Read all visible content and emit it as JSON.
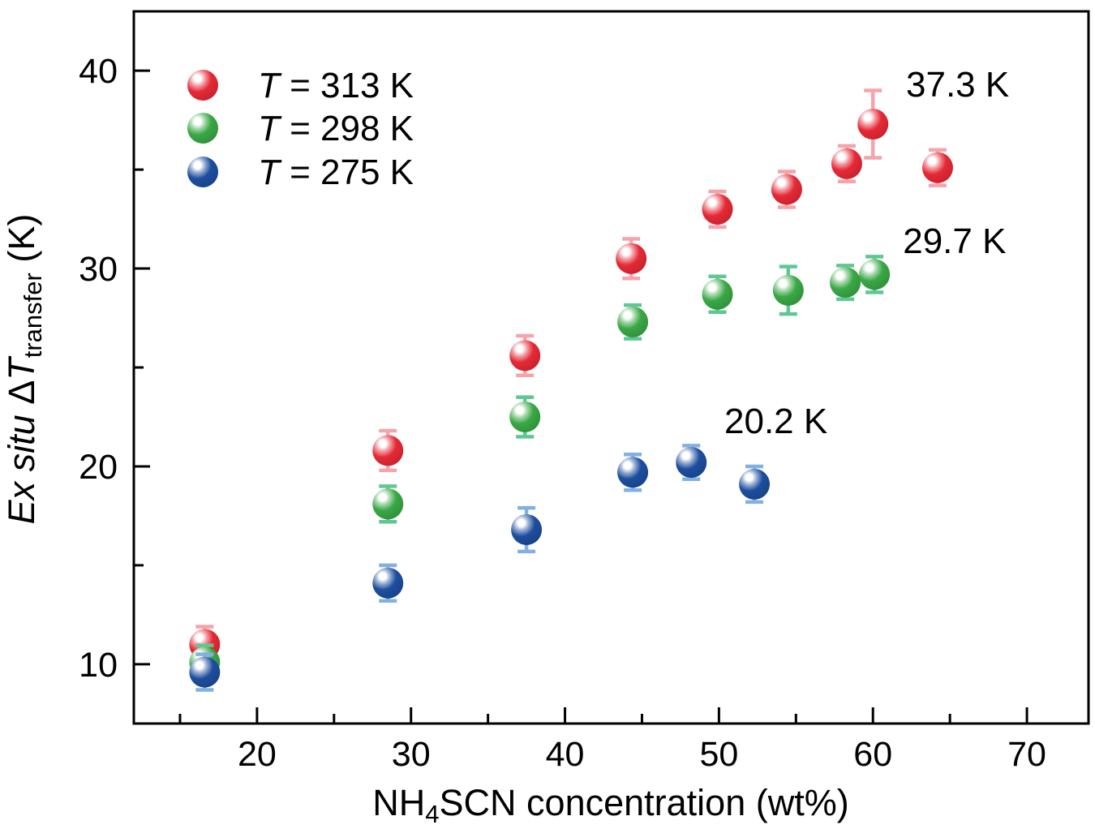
{
  "figure": {
    "background": "#ffffff",
    "axis_color": "#000000"
  },
  "labels": {
    "xlabel_parts": {
      "p1": "NH",
      "sub": "4",
      "p2": "SCN concentration (wt%)"
    },
    "ylabel_parts": {
      "italic1": "Ex situ",
      "delta": " Δ",
      "t_italic": "T",
      "sub": "transfer",
      "rest": " (K)"
    }
  },
  "legend": {
    "items": [
      {
        "t": "T",
        "rest": " = 313 K",
        "series": 0
      },
      {
        "t": "T",
        "rest": " = 298 K",
        "series": 1
      },
      {
        "t": "T",
        "rest": " = 275 K",
        "series": 2
      }
    ]
  },
  "chart_data": {
    "type": "scatter",
    "title": "",
    "xlabel": "NH4SCN concentration (wt%)",
    "ylabel": "Ex situ ΔT_transfer (K)",
    "xlim": [
      12,
      74
    ],
    "ylim": [
      7,
      43
    ],
    "x_ticks_major": [
      20,
      30,
      40,
      50,
      60,
      70
    ],
    "x_ticks_minor": [
      15,
      25,
      35,
      45,
      55,
      65
    ],
    "y_ticks_major": [
      10,
      20,
      30,
      40
    ],
    "y_ticks_minor": [
      15,
      25,
      35
    ],
    "grid": false,
    "legend_position": "upper-left-inside",
    "marker": "glossy-sphere",
    "series": [
      {
        "name": "T = 313 K",
        "temperature_K": 313,
        "color": "#e62936",
        "error_color": "#f6a3ab",
        "points": [
          {
            "x": 16.6,
            "y": 11.0,
            "err": 0.9
          },
          {
            "x": 28.5,
            "y": 20.8,
            "err": 1.0
          },
          {
            "x": 37.4,
            "y": 25.6,
            "err": 1.0
          },
          {
            "x": 44.3,
            "y": 30.5,
            "err": 1.0
          },
          {
            "x": 49.9,
            "y": 33.0,
            "err": 0.9
          },
          {
            "x": 54.4,
            "y": 34.0,
            "err": 0.9
          },
          {
            "x": 58.3,
            "y": 35.3,
            "err": 0.9
          },
          {
            "x": 60.0,
            "y": 37.3,
            "err": 1.7
          },
          {
            "x": 64.2,
            "y": 35.1,
            "err": 0.9
          }
        ]
      },
      {
        "name": "T = 298 K",
        "temperature_K": 298,
        "color": "#39a845",
        "error_color": "#5fc795",
        "points": [
          {
            "x": 16.6,
            "y": 10.1,
            "err": 0.85
          },
          {
            "x": 28.5,
            "y": 18.1,
            "err": 0.9
          },
          {
            "x": 37.4,
            "y": 22.5,
            "err": 1.0
          },
          {
            "x": 44.4,
            "y": 27.3,
            "err": 0.85
          },
          {
            "x": 49.9,
            "y": 28.7,
            "err": 0.9
          },
          {
            "x": 54.5,
            "y": 28.9,
            "err": 1.2
          },
          {
            "x": 58.2,
            "y": 29.3,
            "err": 0.85
          },
          {
            "x": 60.1,
            "y": 29.7,
            "err": 0.9
          }
        ]
      },
      {
        "name": "T = 275 K",
        "temperature_K": 275,
        "color": "#1d4e9e",
        "error_color": "#82b1e0",
        "points": [
          {
            "x": 16.6,
            "y": 9.6,
            "err": 0.9
          },
          {
            "x": 28.5,
            "y": 14.1,
            "err": 0.9
          },
          {
            "x": 37.5,
            "y": 16.8,
            "err": 1.1
          },
          {
            "x": 44.4,
            "y": 19.7,
            "err": 0.9
          },
          {
            "x": 48.2,
            "y": 20.2,
            "err": 0.85
          },
          {
            "x": 52.3,
            "y": 19.1,
            "err": 0.9
          }
        ]
      }
    ],
    "annotations": [
      {
        "text": "37.3 K",
        "x": 65.5,
        "y": 39.3,
        "color": "#e62936"
      },
      {
        "text": "29.7 K",
        "x": 65.3,
        "y": 31.4,
        "color": "#111111"
      },
      {
        "text": "20.2 K",
        "x": 53.7,
        "y": 22.3,
        "color": "#111111"
      }
    ]
  }
}
